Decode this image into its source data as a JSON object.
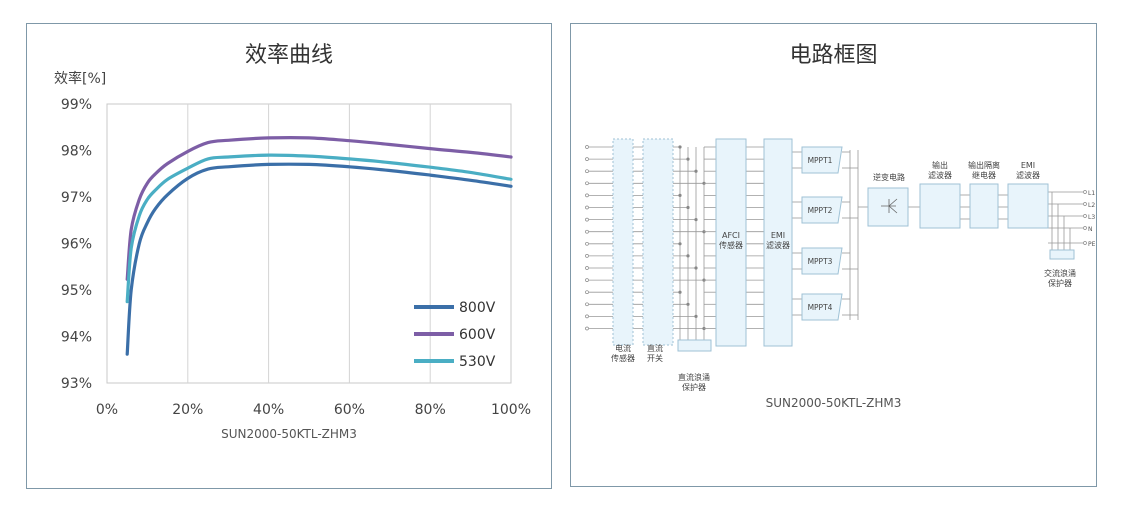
{
  "left_panel": {
    "title": "效率曲线",
    "model": "SUN2000-50KTL-ZHM3"
  },
  "right_panel": {
    "title": "电路框图",
    "model": "SUN2000-50KTL-ZHM3",
    "blocks": {
      "current_sensor": "电流\n传感器",
      "dc_switch": "直流\n开关",
      "dc_spd": "直流浪涌\n保护器",
      "afci": "AFCI\n传感器",
      "emi_in": "EMI\n滤波器",
      "mppt": [
        "MPPT1",
        "MPPT2",
        "MPPT3",
        "MPPT4"
      ],
      "inverter": "逆变电路",
      "output_filter": "输出\n滤波器",
      "output_relay": "输出隔离\n继电器",
      "emi_out": "EMI\n滤波器",
      "ac_spd": "交流浪涌\n保护器",
      "outputs": [
        "L1",
        "L2",
        "L3",
        "N",
        "PE"
      ]
    }
  },
  "colors": {
    "800V": "#3b6fa8",
    "600V": "#7d5ea6",
    "530V": "#4aaec4",
    "frame": "#7f98a8"
  },
  "chart_data": {
    "type": "line",
    "title": "效率曲线",
    "ylabel": "效率[%]",
    "xlabel": "",
    "xlim": [
      0,
      100
    ],
    "ylim": [
      93,
      99
    ],
    "x_ticks": [
      0,
      20,
      40,
      60,
      80,
      100
    ],
    "y_ticks": [
      93,
      94,
      95,
      96,
      97,
      98,
      99
    ],
    "x_tick_labels": [
      "0%",
      "20%",
      "40%",
      "60%",
      "80%",
      "100%"
    ],
    "y_tick_labels": [
      "93%",
      "94%",
      "95%",
      "96%",
      "97%",
      "98%",
      "99%"
    ],
    "grid": "vertical",
    "legend_position": "bottom-right",
    "x": [
      5,
      6,
      8,
      10,
      12,
      15,
      20,
      25,
      30,
      40,
      50,
      60,
      70,
      80,
      90,
      100
    ],
    "series": [
      {
        "name": "800V",
        "values": [
          93.62,
          95.0,
          96.0,
          96.45,
          96.75,
          97.05,
          97.4,
          97.6,
          97.65,
          97.7,
          97.7,
          97.65,
          97.57,
          97.47,
          97.36,
          97.23
        ]
      },
      {
        "name": "600V",
        "values": [
          95.23,
          96.3,
          96.95,
          97.3,
          97.5,
          97.72,
          97.98,
          98.17,
          98.22,
          98.27,
          98.27,
          98.21,
          98.13,
          98.04,
          97.96,
          97.86
        ]
      },
      {
        "name": "530V",
        "values": [
          94.75,
          95.9,
          96.6,
          96.95,
          97.15,
          97.38,
          97.62,
          97.82,
          97.86,
          97.9,
          97.88,
          97.82,
          97.74,
          97.64,
          97.53,
          97.38
        ]
      }
    ]
  }
}
